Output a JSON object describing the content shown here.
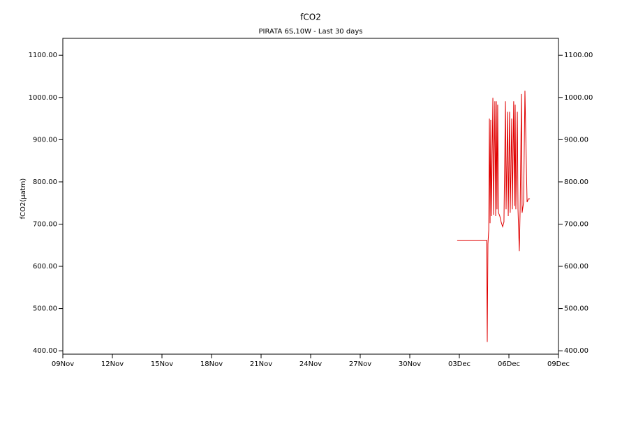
{
  "chart_data": {
    "type": "line",
    "title": "fCO2",
    "subtitle": "PIRATA 6S,10W - Last 30 days",
    "y_label": "fCO2(μatm)",
    "x": [
      23.87,
      25.65,
      25.69,
      25.73,
      25.78,
      25.82,
      25.86,
      25.9,
      25.94,
      26.03,
      26.07,
      26.15,
      26.2,
      26.24,
      26.28,
      26.32,
      26.37,
      26.45,
      26.53,
      26.62,
      26.7,
      26.79,
      26.83,
      26.92,
      26.96,
      27.04,
      27.08,
      27.17,
      27.21,
      27.29,
      27.34,
      27.38,
      27.42,
      27.51,
      27.55,
      27.63,
      27.68,
      27.76,
      27.8,
      27.89,
      27.97,
      28.01,
      28.1,
      28.18,
      28.27
    ],
    "series": [
      {
        "color": "#e00000",
        "values": [
          662,
          662,
          421,
          653,
          686,
          950,
          702,
          947,
          719,
          999,
          722,
          991,
          719,
          991,
          735,
          983,
          727,
          719,
          705,
          694,
          705,
          991,
          735,
          966,
          719,
          966,
          727,
          950,
          735,
          991,
          743,
          983,
          735,
          966,
          735,
          636,
          735,
          1008,
          727,
          752,
          1016,
          933,
          752,
          760,
          760
        ]
      }
    ],
    "xlim": [
      0,
      30
    ],
    "xticks": [
      {
        "value": 0,
        "label": "09Nov"
      },
      {
        "value": 3,
        "label": "12Nov"
      },
      {
        "value": 6,
        "label": "15Nov"
      },
      {
        "value": 9,
        "label": "18Nov"
      },
      {
        "value": 12,
        "label": "21Nov"
      },
      {
        "value": 15,
        "label": "24Nov"
      },
      {
        "value": 18,
        "label": "27Nov"
      },
      {
        "value": 21,
        "label": "30Nov"
      },
      {
        "value": 24,
        "label": "03Dec"
      },
      {
        "value": 27,
        "label": "06Dec"
      },
      {
        "value": 30,
        "label": "09Dec"
      }
    ],
    "ylim": [
      392,
      1140
    ],
    "yticks": [
      {
        "value": 400,
        "label": "400.00"
      },
      {
        "value": 500,
        "label": "500.00"
      },
      {
        "value": 600,
        "label": "600.00"
      },
      {
        "value": 700,
        "label": "700.00"
      },
      {
        "value": 800,
        "label": "800.00"
      },
      {
        "value": 900,
        "label": "900.00"
      },
      {
        "value": 1000,
        "label": "1000.00"
      },
      {
        "value": 1100,
        "label": "1100.00"
      }
    ]
  }
}
